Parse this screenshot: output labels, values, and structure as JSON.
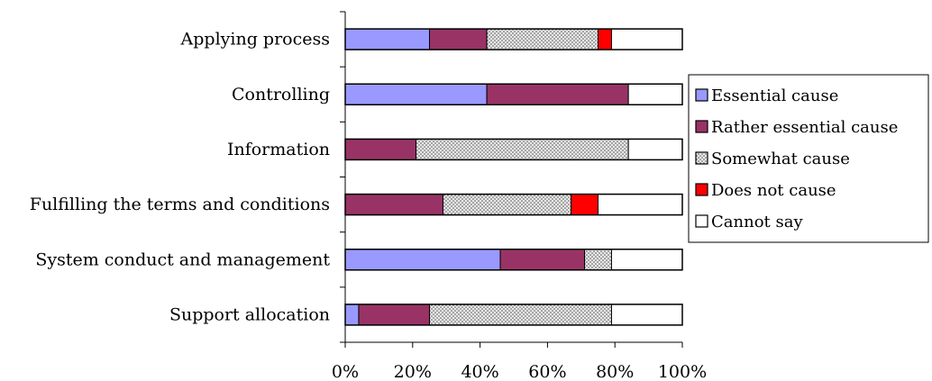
{
  "chart_data": {
    "type": "bar",
    "orientation": "horizontal",
    "stacked": true,
    "percent_stacked": true,
    "categories": [
      "Applying process",
      "Controlling",
      "Information",
      "Fulfilling the terms and conditions",
      "System conduct and management",
      "Support allocation"
    ],
    "series": [
      {
        "name": "Essential cause",
        "color": "#9999ff",
        "pattern": "solid",
        "values": [
          25,
          42,
          0,
          0,
          46,
          4
        ]
      },
      {
        "name": "Rather essential cause",
        "color": "#993366",
        "pattern": "solid",
        "values": [
          17,
          42,
          21,
          29,
          25,
          21
        ]
      },
      {
        "name": "Somewhat cause",
        "color": "#d9d9d9",
        "pattern": "dotted",
        "values": [
          33,
          0,
          63,
          38,
          8,
          54
        ]
      },
      {
        "name": "Does not cause",
        "color": "#ff0000",
        "pattern": "solid",
        "values": [
          4,
          0,
          0,
          8,
          0,
          0
        ]
      },
      {
        "name": "Cannot say",
        "color": "#ffffff",
        "pattern": "solid",
        "values": [
          21,
          16,
          16,
          25,
          21,
          21
        ]
      }
    ],
    "x_ticks": [
      "0%",
      "20%",
      "40%",
      "60%",
      "80%",
      "100%"
    ],
    "xlim": [
      0,
      100
    ],
    "title": "",
    "xlabel": "",
    "ylabel": "",
    "grid": false,
    "legend_position": "right"
  }
}
